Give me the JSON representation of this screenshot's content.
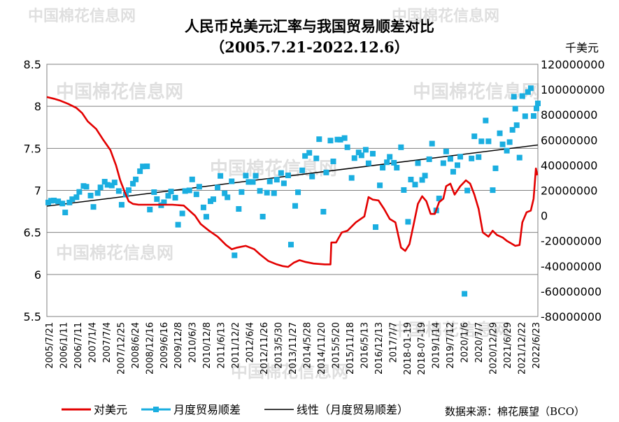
{
  "chart_data": {
    "type": "line",
    "title": "人民币兑美元汇率与我国贸易顺差对比",
    "subtitle": "（2005.7.21-2022.12.6）",
    "y2_unit": "千美元",
    "source": "数据来源：棉花展望（BCO）",
    "watermark": "中国棉花信息网",
    "colors": {
      "rate": "#e30000",
      "surplus": "#1aaee0",
      "trend": "#000000",
      "grid": "#808080"
    },
    "y_left": {
      "min": 5.5,
      "max": 8.5,
      "ticks": [
        "5.5",
        "6",
        "6.5",
        "7",
        "7.5",
        "8",
        "8.5"
      ]
    },
    "y_right": {
      "min": -80000000,
      "max": 120000000,
      "ticks": [
        "-80000000",
        "-60000000",
        "-40000000",
        "-20000000",
        "0",
        "20000000",
        "40000000",
        "60000000",
        "80000000",
        "100000000",
        "120000000"
      ]
    },
    "x_ticks": [
      "2005/7/21",
      "2006/1/11",
      "2006/7/11",
      "2007/1/4",
      "2007/7/4",
      "2007/12/25",
      "2008/6/24",
      "2008/12/16",
      "2009/6/16",
      "2009/12/8",
      "2010/6/3",
      "2010/12/8",
      "2011/6/13",
      "2011/12/2",
      "2012/6/4",
      "2012/11/26",
      "2013/5/30",
      "2013/11/27",
      "2014/5/28",
      "2014/11/20",
      "2015/5/20",
      "2015/11/18",
      "2016/5/13",
      "2016/12/13",
      "2017/7/7",
      "2018-01-19",
      "2018-07-19",
      "2019/1/14",
      "2019/7/12",
      "2020/1/6",
      "2020/7/7",
      "2020/12/29",
      "2021/6/29",
      "2021/12/22",
      "2022/6/23"
    ],
    "legend": [
      {
        "key": "rate",
        "label": "对美元"
      },
      {
        "key": "surplus",
        "label": "月度贸易顺差"
      },
      {
        "key": "trend",
        "label": "线性（月度贸易顺差）"
      }
    ],
    "series": [
      {
        "name": "对美元",
        "axis": "left",
        "points": [
          [
            2005.55,
            8.11
          ],
          [
            2005.8,
            8.09
          ],
          [
            2006.0,
            8.07
          ],
          [
            2006.3,
            8.03
          ],
          [
            2006.6,
            7.98
          ],
          [
            2006.8,
            7.92
          ],
          [
            2007.0,
            7.82
          ],
          [
            2007.3,
            7.73
          ],
          [
            2007.55,
            7.6
          ],
          [
            2007.8,
            7.48
          ],
          [
            2008.0,
            7.3
          ],
          [
            2008.15,
            7.12
          ],
          [
            2008.3,
            6.99
          ],
          [
            2008.45,
            6.87
          ],
          [
            2008.6,
            6.84
          ],
          [
            2008.8,
            6.83
          ],
          [
            2009.0,
            6.83
          ],
          [
            2009.5,
            6.83
          ],
          [
            2010.0,
            6.83
          ],
          [
            2010.4,
            6.82
          ],
          [
            2010.6,
            6.76
          ],
          [
            2010.8,
            6.7
          ],
          [
            2011.0,
            6.6
          ],
          [
            2011.3,
            6.52
          ],
          [
            2011.6,
            6.45
          ],
          [
            2011.9,
            6.35
          ],
          [
            2012.1,
            6.3
          ],
          [
            2012.3,
            6.32
          ],
          [
            2012.6,
            6.34
          ],
          [
            2012.9,
            6.3
          ],
          [
            2013.1,
            6.24
          ],
          [
            2013.4,
            6.16
          ],
          [
            2013.7,
            6.12
          ],
          [
            2013.9,
            6.1
          ],
          [
            2014.1,
            6.09
          ],
          [
            2014.3,
            6.14
          ],
          [
            2014.5,
            6.17
          ],
          [
            2014.7,
            6.15
          ],
          [
            2015.0,
            6.13
          ],
          [
            2015.4,
            6.12
          ],
          [
            2015.6,
            6.12
          ],
          [
            2015.63,
            6.38
          ],
          [
            2015.8,
            6.38
          ],
          [
            2016.0,
            6.5
          ],
          [
            2016.2,
            6.52
          ],
          [
            2016.5,
            6.62
          ],
          [
            2016.8,
            6.69
          ],
          [
            2016.95,
            6.92
          ],
          [
            2017.1,
            6.89
          ],
          [
            2017.3,
            6.88
          ],
          [
            2017.5,
            6.78
          ],
          [
            2017.7,
            6.66
          ],
          [
            2017.9,
            6.62
          ],
          [
            2018.1,
            6.32
          ],
          [
            2018.25,
            6.28
          ],
          [
            2018.4,
            6.36
          ],
          [
            2018.55,
            6.6
          ],
          [
            2018.7,
            6.84
          ],
          [
            2018.85,
            6.93
          ],
          [
            2019.0,
            6.87
          ],
          [
            2019.15,
            6.72
          ],
          [
            2019.3,
            6.72
          ],
          [
            2019.45,
            6.86
          ],
          [
            2019.6,
            6.9
          ],
          [
            2019.7,
            7.05
          ],
          [
            2019.85,
            7.08
          ],
          [
            2020.0,
            6.95
          ],
          [
            2020.2,
            7.05
          ],
          [
            2020.4,
            7.12
          ],
          [
            2020.55,
            7.08
          ],
          [
            2020.7,
            6.95
          ],
          [
            2020.85,
            6.78
          ],
          [
            2021.0,
            6.5
          ],
          [
            2021.2,
            6.45
          ],
          [
            2021.35,
            6.52
          ],
          [
            2021.5,
            6.47
          ],
          [
            2021.7,
            6.44
          ],
          [
            2021.85,
            6.4
          ],
          [
            2022.0,
            6.37
          ],
          [
            2022.15,
            6.34
          ],
          [
            2022.3,
            6.35
          ],
          [
            2022.4,
            6.62
          ],
          [
            2022.55,
            6.74
          ],
          [
            2022.7,
            6.76
          ],
          [
            2022.8,
            6.9
          ],
          [
            2022.88,
            7.26
          ],
          [
            2022.93,
            7.18
          ]
        ]
      },
      {
        "name": "月度贸易顺差",
        "axis": "right",
        "points": [
          [
            2005.6,
            10400000
          ],
          [
            2005.7,
            11800000
          ],
          [
            2005.8,
            12000000
          ],
          [
            2005.95,
            11300000
          ],
          [
            2006.1,
            9600000
          ],
          [
            2006.2,
            2500000
          ],
          [
            2006.35,
            10400000
          ],
          [
            2006.45,
            13000000
          ],
          [
            2006.6,
            14600000
          ],
          [
            2006.7,
            18800000
          ],
          [
            2006.85,
            23500000
          ],
          [
            2006.95,
            22900000
          ],
          [
            2007.1,
            15900000
          ],
          [
            2007.2,
            6900000
          ],
          [
            2007.35,
            17900000
          ],
          [
            2007.45,
            22400000
          ],
          [
            2007.6,
            26900000
          ],
          [
            2007.7,
            24400000
          ],
          [
            2007.85,
            23900000
          ],
          [
            2007.95,
            26300000
          ],
          [
            2008.1,
            19500000
          ],
          [
            2008.2,
            8600000
          ],
          [
            2008.35,
            16700000
          ],
          [
            2008.45,
            20200000
          ],
          [
            2008.6,
            25300000
          ],
          [
            2008.7,
            28700000
          ],
          [
            2008.85,
            35200000
          ],
          [
            2008.95,
            39000000
          ],
          [
            2009.1,
            39100000
          ],
          [
            2009.2,
            4800000
          ],
          [
            2009.35,
            18600000
          ],
          [
            2009.45,
            13100000
          ],
          [
            2009.6,
            8200000
          ],
          [
            2009.7,
            10600000
          ],
          [
            2009.85,
            15700000
          ],
          [
            2009.95,
            19100000
          ],
          [
            2010.1,
            14200000
          ],
          [
            2010.2,
            -7200000
          ],
          [
            2010.35,
            1700000
          ],
          [
            2010.45,
            19500000
          ],
          [
            2010.6,
            20000000
          ],
          [
            2010.7,
            28700000
          ],
          [
            2010.85,
            16900000
          ],
          [
            2010.95,
            22900000
          ],
          [
            2011.1,
            6500000
          ],
          [
            2011.2,
            -900000
          ],
          [
            2011.35,
            11400000
          ],
          [
            2011.45,
            13000000
          ],
          [
            2011.6,
            22300000
          ],
          [
            2011.7,
            31500000
          ],
          [
            2011.85,
            17700000
          ],
          [
            2011.95,
            14500000
          ],
          [
            2012.1,
            27200000
          ],
          [
            2012.2,
            -31500000
          ],
          [
            2012.35,
            5300000
          ],
          [
            2012.45,
            18700000
          ],
          [
            2012.6,
            31700000
          ],
          [
            2012.7,
            26700000
          ],
          [
            2012.85,
            26700000
          ],
          [
            2012.95,
            31600000
          ],
          [
            2013.1,
            19600000
          ],
          [
            2013.2,
            -800000
          ],
          [
            2013.35,
            18200000
          ],
          [
            2013.45,
            27100000
          ],
          [
            2013.6,
            17800000
          ],
          [
            2013.7,
            28500000
          ],
          [
            2013.85,
            33800000
          ],
          [
            2013.95,
            25600000
          ],
          [
            2014.1,
            31900000
          ],
          [
            2014.2,
            -23000000
          ],
          [
            2014.35,
            7700000
          ],
          [
            2014.45,
            18500000
          ],
          [
            2014.6,
            35900000
          ],
          [
            2014.7,
            47300000
          ],
          [
            2014.85,
            49800000
          ],
          [
            2014.95,
            31000000
          ],
          [
            2015.1,
            45400000
          ],
          [
            2015.2,
            60600000
          ],
          [
            2015.35,
            3100000
          ],
          [
            2015.45,
            34200000
          ],
          [
            2015.6,
            59500000
          ],
          [
            2015.7,
            43000000
          ],
          [
            2015.85,
            60300000
          ],
          [
            2015.95,
            60200000
          ],
          [
            2016.1,
            61500000
          ],
          [
            2016.2,
            54200000
          ],
          [
            2016.35,
            29900000
          ],
          [
            2016.45,
            45600000
          ],
          [
            2016.6,
            50100000
          ],
          [
            2016.7,
            47800000
          ],
          [
            2016.85,
            52200000
          ],
          [
            2016.95,
            41500000
          ],
          [
            2017.1,
            49100000
          ],
          [
            2017.2,
            -9100000
          ],
          [
            2017.35,
            24000000
          ],
          [
            2017.45,
            38000000
          ],
          [
            2017.6,
            42300000
          ],
          [
            2017.7,
            46600000
          ],
          [
            2017.85,
            41900000
          ],
          [
            2017.95,
            38000000
          ],
          [
            2018.1,
            54200000
          ],
          [
            2018.2,
            20300000
          ],
          [
            2018.35,
            -4900000
          ],
          [
            2018.45,
            28600000
          ],
          [
            2018.6,
            24600000
          ],
          [
            2018.7,
            41600000
          ],
          [
            2018.85,
            28300000
          ],
          [
            2018.95,
            31700000
          ],
          [
            2019.1,
            44700000
          ],
          [
            2019.2,
            57100000
          ],
          [
            2019.35,
            4100000
          ],
          [
            2019.45,
            13600000
          ],
          [
            2019.6,
            41600000
          ],
          [
            2019.7,
            50900000
          ],
          [
            2019.85,
            45000000
          ],
          [
            2019.95,
            34800000
          ],
          [
            2020.1,
            40000000
          ],
          [
            2020.2,
            46700000
          ],
          [
            2020.35,
            -62000000
          ],
          [
            2020.45,
            19900000
          ],
          [
            2020.6,
            45300000
          ],
          [
            2020.7,
            62900000
          ],
          [
            2020.85,
            46400000
          ],
          [
            2020.95,
            58900000
          ],
          [
            2021.1,
            75400000
          ],
          [
            2021.2,
            58900000
          ],
          [
            2021.35,
            20200000
          ],
          [
            2021.45,
            37500000
          ],
          [
            2021.6,
            65300000
          ],
          [
            2021.7,
            56500000
          ],
          [
            2021.85,
            51500000
          ],
          [
            2021.95,
            58300000
          ],
          [
            2022.05,
            68000000
          ],
          [
            2022.1,
            94300000
          ],
          [
            2022.15,
            84800000
          ],
          [
            2022.2,
            71700000
          ],
          [
            2022.3,
            46000000
          ],
          [
            2022.4,
            94800000
          ],
          [
            2022.5,
            78800000
          ],
          [
            2022.6,
            98000000
          ],
          [
            2022.7,
            101000000
          ],
          [
            2022.8,
            79000000
          ],
          [
            2022.9,
            85000000
          ],
          [
            2022.95,
            89000000
          ]
        ]
      },
      {
        "name": "线性（月度贸易顺差）",
        "axis": "right",
        "points": [
          [
            2005.55,
            7500000
          ],
          [
            2022.95,
            56000000
          ]
        ]
      }
    ]
  }
}
